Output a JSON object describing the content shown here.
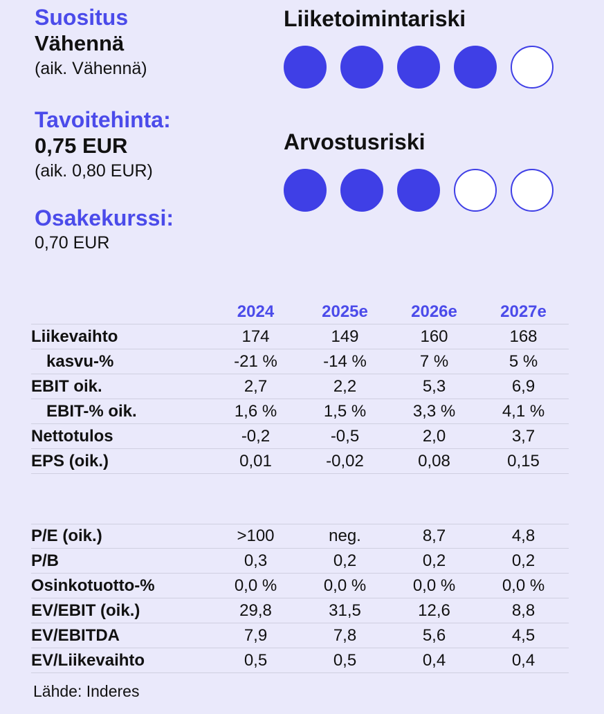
{
  "recommendation": {
    "label": "Suositus",
    "value": "Vähennä",
    "previous": "(aik. Vähennä)"
  },
  "target_price": {
    "label": "Tavoitehinta:",
    "value": "0,75 EUR",
    "previous": "(aik. 0,80 EUR)"
  },
  "share_price": {
    "label": "Osakekurssi:",
    "value": "0,70 EUR"
  },
  "business_risk": {
    "title": "Liiketoimintariski",
    "level": 4,
    "max": 5
  },
  "valuation_risk": {
    "title": "Arvostusriski",
    "level": 3,
    "max": 5
  },
  "colors": {
    "accent": "#4b4bea",
    "dot_fill": "#3f3fe6",
    "background": "#eae9fb"
  },
  "years": [
    "2024",
    "2025e",
    "2026e",
    "2027e"
  ],
  "financials": [
    {
      "label": "Liikevaihto",
      "indent": false,
      "values": [
        "174",
        "149",
        "160",
        "168"
      ]
    },
    {
      "label": "kasvu-%",
      "indent": true,
      "values": [
        "-21 %",
        "-14 %",
        "7 %",
        "5 %"
      ]
    },
    {
      "label": "EBIT oik.",
      "indent": false,
      "values": [
        "2,7",
        "2,2",
        "5,3",
        "6,9"
      ]
    },
    {
      "label": "EBIT-% oik.",
      "indent": true,
      "values": [
        "1,6 %",
        "1,5 %",
        "3,3 %",
        "4,1 %"
      ]
    },
    {
      "label": "Nettotulos",
      "indent": false,
      "values": [
        "-0,2",
        "-0,5",
        "2,0",
        "3,7"
      ]
    },
    {
      "label": "EPS (oik.)",
      "indent": false,
      "values": [
        "0,01",
        "-0,02",
        "0,08",
        "0,15"
      ]
    }
  ],
  "valuation": [
    {
      "label": "P/E (oik.)",
      "values": [
        ">100",
        "neg.",
        "8,7",
        "4,8"
      ]
    },
    {
      "label": "P/B",
      "values": [
        "0,3",
        "0,2",
        "0,2",
        "0,2"
      ]
    },
    {
      "label": "Osinkotuotto-%",
      "values": [
        "0,0 %",
        "0,0 %",
        "0,0 %",
        "0,0 %"
      ]
    },
    {
      "label": "EV/EBIT (oik.)",
      "values": [
        "29,8",
        "31,5",
        "12,6",
        "8,8"
      ]
    },
    {
      "label": "EV/EBITDA",
      "values": [
        "7,9",
        "7,8",
        "5,6",
        "4,5"
      ]
    },
    {
      "label": "EV/Liikevaihto",
      "values": [
        "0,5",
        "0,5",
        "0,4",
        "0,4"
      ]
    }
  ],
  "source": "Lähde: Inderes"
}
